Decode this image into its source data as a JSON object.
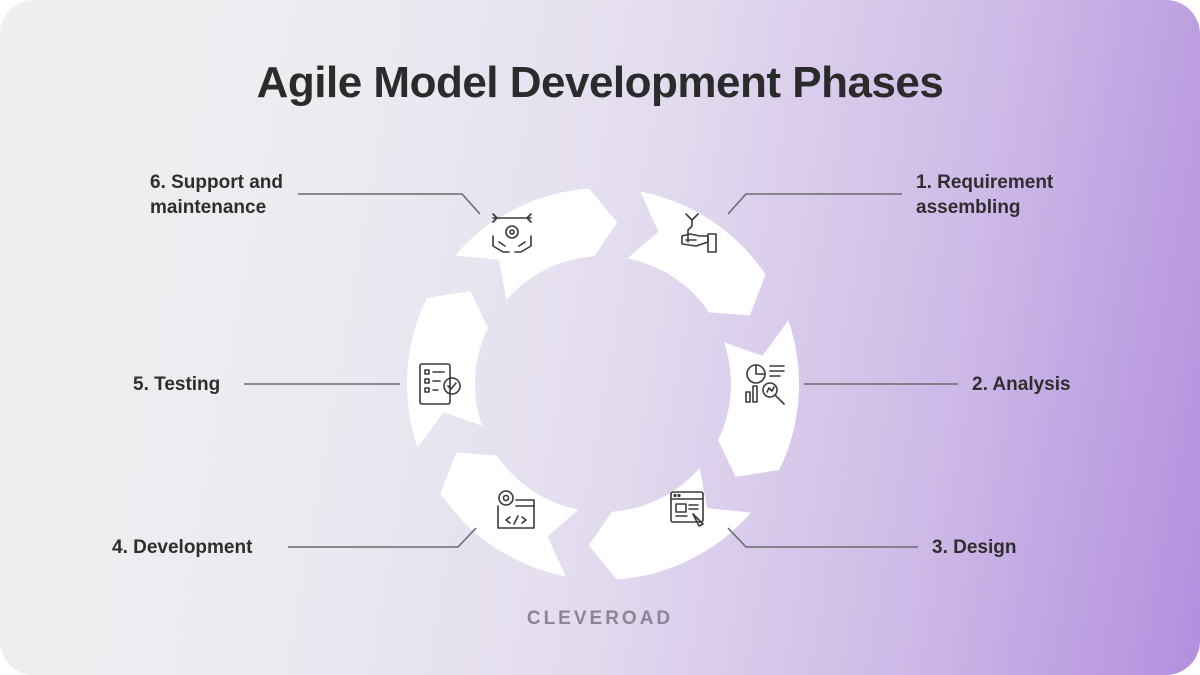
{
  "title": "Agile Model Development Phases",
  "phases": [
    {
      "label_line1": "1. Requirement",
      "label_line2": "assembling",
      "icon": "wrench-hand-icon"
    },
    {
      "label_line1": "2. Analysis",
      "label_line2": "",
      "icon": "analytics-chart-icon"
    },
    {
      "label_line1": "3. Design",
      "label_line2": "",
      "icon": "design-window-icon"
    },
    {
      "label_line1": "4. Development",
      "label_line2": "",
      "icon": "code-window-icon"
    },
    {
      "label_line1": "5. Testing",
      "label_line2": "",
      "icon": "checklist-icon"
    },
    {
      "label_line1": "6. Support and",
      "label_line2": "maintenance",
      "icon": "support-hands-icon"
    }
  ],
  "brand": "CLEVEROAD",
  "colors": {
    "background_left": "#efeff1",
    "background_right": "#b38fde",
    "cycle_fill": "#ffffff",
    "connector_line": "#6b6b6b",
    "text": "#2e2e2e"
  }
}
